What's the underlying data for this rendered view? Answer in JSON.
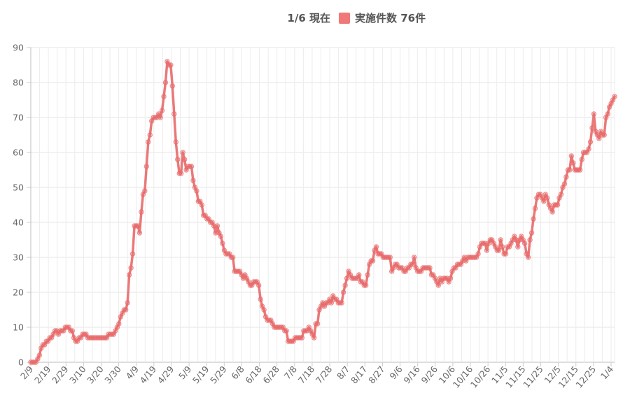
{
  "chart_data": {
    "type": "line",
    "legend": {
      "date_label": "1/6 現在",
      "series_label": "実施件数 76件",
      "position": "top-center",
      "color": "#f07878"
    },
    "xlabel": "",
    "ylabel": "",
    "ylim": [
      0,
      90
    ],
    "yticks": [
      0,
      10,
      20,
      30,
      40,
      50,
      60,
      70,
      80,
      90
    ],
    "grid": true,
    "line_color": "#e86a6a",
    "point_color": "#e86a6a",
    "xtick_labels": [
      "2/9",
      "2/19",
      "2/29",
      "3/10",
      "3/20",
      "3/30",
      "4/9",
      "4/19",
      "4/29",
      "5/9",
      "5/19",
      "5/29",
      "6/8",
      "6/18",
      "6/28",
      "7/8",
      "7/18",
      "7/28",
      "8/7",
      "8/17",
      "8/27",
      "9/6",
      "9/16",
      "9/26",
      "10/6",
      "10/16",
      "10/26",
      "11/5",
      "11/15",
      "11/25",
      "12/5",
      "12/15",
      "12/25",
      "1/4"
    ],
    "start_label": "2/9",
    "end_label": "1/6",
    "series": [
      {
        "values": [
          0,
          0,
          0,
          0,
          1,
          2,
          4,
          5,
          5,
          6,
          6,
          7,
          7,
          8,
          9,
          9,
          8,
          9,
          9,
          9,
          10,
          10,
          10,
          9,
          9,
          7,
          6,
          6,
          7,
          7,
          8,
          8,
          8,
          7,
          7,
          7,
          7,
          7,
          7,
          7,
          7,
          7,
          7,
          7,
          7,
          8,
          8,
          8,
          8,
          9,
          10,
          11,
          13,
          14,
          15,
          15,
          17,
          25,
          27,
          31,
          39,
          39,
          39,
          37,
          43,
          48,
          49,
          56,
          63,
          65,
          69,
          70,
          70,
          70,
          71,
          70,
          72,
          76,
          80,
          86,
          85,
          85,
          79,
          71,
          63,
          58,
          54,
          54,
          60,
          58,
          55,
          56,
          56,
          56,
          52,
          50,
          49,
          46,
          46,
          45,
          42,
          42,
          41,
          41,
          40,
          40,
          39,
          37,
          39,
          37,
          36,
          34,
          32,
          31,
          31,
          31,
          30,
          30,
          26,
          26,
          26,
          26,
          25,
          24,
          25,
          24,
          23,
          22,
          22,
          23,
          23,
          23,
          22,
          18,
          16,
          15,
          13,
          12,
          12,
          12,
          11,
          10,
          10,
          10,
          10,
          10,
          10,
          9,
          9,
          6,
          6,
          6,
          6,
          7,
          7,
          7,
          7,
          7,
          9,
          9,
          9,
          10,
          9,
          8,
          7,
          11,
          11,
          15,
          16,
          17,
          16,
          17,
          17,
          18,
          17,
          19,
          18,
          18,
          17,
          17,
          17,
          20,
          22,
          24,
          26,
          25,
          24,
          24,
          24,
          24,
          25,
          23,
          23,
          22,
          22,
          25,
          28,
          29,
          29,
          32,
          33,
          31,
          31,
          31,
          30,
          30,
          30,
          30,
          30,
          26,
          27,
          28,
          28,
          27,
          27,
          27,
          26,
          26,
          27,
          27,
          28,
          28,
          30,
          27,
          26,
          26,
          26,
          27,
          27,
          27,
          27,
          27,
          25,
          25,
          24,
          23,
          22,
          24,
          23,
          24,
          24,
          24,
          23,
          24,
          26,
          27,
          27,
          28,
          28,
          28,
          29,
          30,
          29,
          30,
          30,
          30,
          30,
          30,
          30,
          31,
          33,
          34,
          34,
          34,
          32,
          34,
          35,
          35,
          34,
          33,
          32,
          32,
          35,
          33,
          31,
          31,
          33,
          33,
          34,
          35,
          36,
          35,
          33,
          35,
          36,
          35,
          34,
          31,
          30,
          35,
          37,
          41,
          44,
          47,
          48,
          48,
          47,
          46,
          48,
          47,
          45,
          44,
          43,
          45,
          45,
          45,
          47,
          48,
          50,
          51,
          53,
          55,
          55,
          59,
          57,
          55,
          55,
          55,
          55,
          58,
          60,
          60,
          60,
          61,
          63,
          67,
          71,
          66,
          65,
          64,
          66,
          65,
          65,
          70,
          71,
          73,
          74,
          75,
          76
        ]
      }
    ]
  }
}
